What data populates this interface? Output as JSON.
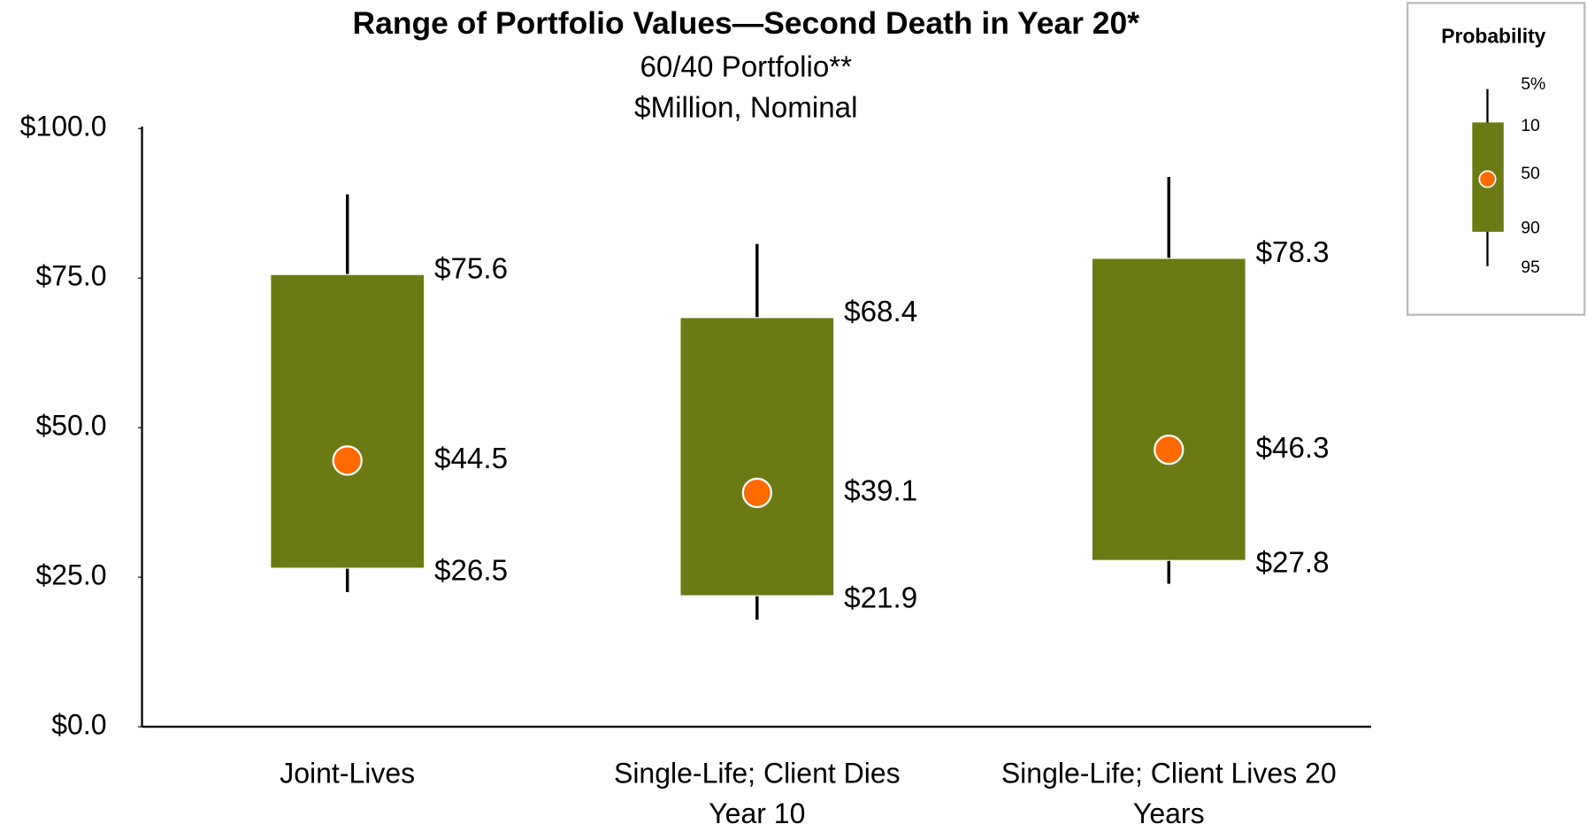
{
  "chart_data": {
    "type": "box",
    "title": "Range of Portfolio Values—Second Death in Year 20*",
    "subtitle": "60/40 Portfolio**",
    "unit_label": "$Million, Nominal",
    "categories": [
      [
        "Joint-Lives"
      ],
      [
        "Single-Life; Client Dies",
        "Year 10"
      ],
      [
        "Single-Life; Client Lives 20",
        "Years"
      ]
    ],
    "p5": [
      22.5,
      17.9,
      23.9
    ],
    "p10": [
      26.5,
      21.9,
      27.8
    ],
    "p50": [
      44.5,
      39.1,
      46.3
    ],
    "p90": [
      75.6,
      68.4,
      78.3
    ],
    "p95": [
      89.0,
      80.7,
      91.9
    ],
    "value_labels": {
      "p10": [
        "$26.5",
        "$21.9",
        "$27.8"
      ],
      "p50": [
        "$44.5",
        "$39.1",
        "$46.3"
      ],
      "p90": [
        "$75.6",
        "$68.4",
        "$78.3"
      ]
    },
    "box_color": "#6b7a12",
    "median_color": "#ff6a00",
    "ylim": [
      0,
      100
    ],
    "yticks": [
      {
        "value": 0,
        "label": "$0.0"
      },
      {
        "value": 25,
        "label": "$25.0"
      },
      {
        "value": 50,
        "label": "$50.0"
      },
      {
        "value": 75,
        "label": "$75.0"
      },
      {
        "value": 100,
        "label": "$100.0"
      }
    ],
    "grid": false,
    "legend": {
      "title": "Probability",
      "labels": [
        "5%",
        "10",
        "50",
        "90",
        "95"
      ]
    }
  }
}
